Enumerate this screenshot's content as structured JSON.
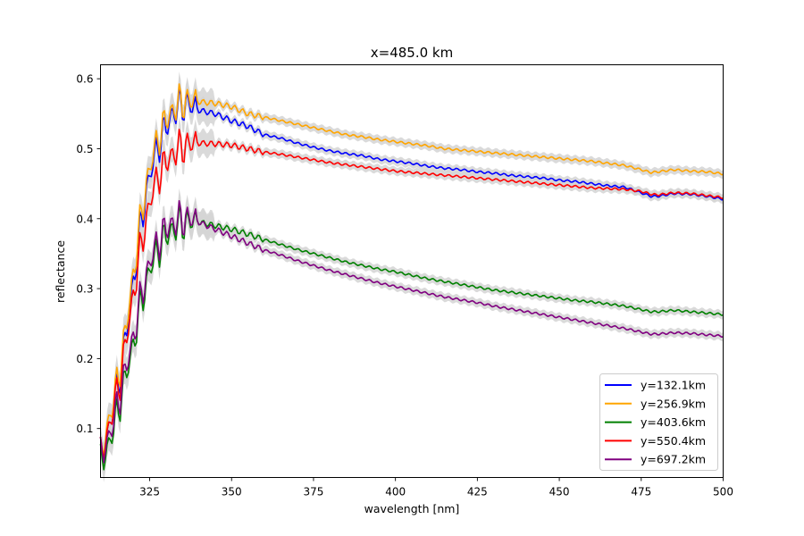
{
  "chart_data": {
    "type": "line",
    "title": "x=485.0 km",
    "xlabel": "wavelength [nm]",
    "ylabel": "reflectance",
    "xlim": [
      310,
      500
    ],
    "ylim": [
      0.03,
      0.62
    ],
    "xticks": [
      325,
      350,
      375,
      400,
      425,
      450,
      475,
      500
    ],
    "yticks": [
      0.1,
      0.2,
      0.3,
      0.4,
      0.5,
      0.6
    ],
    "grid": false,
    "legend_position": "lower-right",
    "uncertainty_band_color": "#d3d3d3",
    "series": [
      {
        "name": "y=132.1km",
        "color": "#0000ff",
        "points": [
          [
            310,
            0.06
          ],
          [
            312,
            0.09
          ],
          [
            314,
            0.13
          ],
          [
            316,
            0.18
          ],
          [
            318,
            0.24
          ],
          [
            320,
            0.31
          ],
          [
            322,
            0.38
          ],
          [
            324,
            0.44
          ],
          [
            326,
            0.48
          ],
          [
            328,
            0.51
          ],
          [
            330,
            0.53
          ],
          [
            332,
            0.55
          ],
          [
            334,
            0.56
          ],
          [
            336,
            0.565
          ],
          [
            338,
            0.56
          ],
          [
            340,
            0.555
          ],
          [
            345,
            0.55
          ],
          [
            350,
            0.54
          ],
          [
            355,
            0.532
          ],
          [
            360,
            0.52
          ],
          [
            365,
            0.515
          ],
          [
            370,
            0.508
          ],
          [
            375,
            0.502
          ],
          [
            380,
            0.497
          ],
          [
            385,
            0.493
          ],
          [
            390,
            0.49
          ],
          [
            395,
            0.485
          ],
          [
            400,
            0.482
          ],
          [
            405,
            0.479
          ],
          [
            410,
            0.475
          ],
          [
            415,
            0.472
          ],
          [
            420,
            0.47
          ],
          [
            425,
            0.467
          ],
          [
            430,
            0.465
          ],
          [
            435,
            0.462
          ],
          [
            440,
            0.46
          ],
          [
            445,
            0.458
          ],
          [
            450,
            0.455
          ],
          [
            455,
            0.453
          ],
          [
            460,
            0.45
          ],
          [
            465,
            0.447
          ],
          [
            470,
            0.445
          ],
          [
            475,
            0.437
          ],
          [
            478,
            0.432
          ],
          [
            480,
            0.432
          ],
          [
            485,
            0.436
          ],
          [
            490,
            0.435
          ],
          [
            495,
            0.432
          ],
          [
            500,
            0.428
          ]
        ]
      },
      {
        "name": "y=256.9km",
        "color": "#ffa500",
        "points": [
          [
            310,
            0.06
          ],
          [
            312,
            0.1
          ],
          [
            314,
            0.14
          ],
          [
            316,
            0.19
          ],
          [
            318,
            0.25
          ],
          [
            320,
            0.32
          ],
          [
            322,
            0.39
          ],
          [
            324,
            0.45
          ],
          [
            326,
            0.49
          ],
          [
            328,
            0.52
          ],
          [
            330,
            0.54
          ],
          [
            332,
            0.555
          ],
          [
            334,
            0.565
          ],
          [
            336,
            0.568
          ],
          [
            338,
            0.568
          ],
          [
            340,
            0.567
          ],
          [
            345,
            0.565
          ],
          [
            350,
            0.56
          ],
          [
            355,
            0.55
          ],
          [
            360,
            0.545
          ],
          [
            365,
            0.54
          ],
          [
            370,
            0.535
          ],
          [
            375,
            0.53
          ],
          [
            380,
            0.525
          ],
          [
            385,
            0.52
          ],
          [
            390,
            0.517
          ],
          [
            395,
            0.513
          ],
          [
            400,
            0.51
          ],
          [
            405,
            0.507
          ],
          [
            410,
            0.504
          ],
          [
            415,
            0.5
          ],
          [
            420,
            0.498
          ],
          [
            425,
            0.496
          ],
          [
            430,
            0.494
          ],
          [
            435,
            0.492
          ],
          [
            440,
            0.49
          ],
          [
            445,
            0.488
          ],
          [
            450,
            0.486
          ],
          [
            455,
            0.484
          ],
          [
            460,
            0.482
          ],
          [
            465,
            0.479
          ],
          [
            470,
            0.476
          ],
          [
            475,
            0.47
          ],
          [
            478,
            0.466
          ],
          [
            480,
            0.467
          ],
          [
            485,
            0.47
          ],
          [
            490,
            0.468
          ],
          [
            495,
            0.467
          ],
          [
            500,
            0.464
          ]
        ]
      },
      {
        "name": "y=403.6km",
        "color": "#008000",
        "points": [
          [
            310,
            0.05
          ],
          [
            312,
            0.07
          ],
          [
            314,
            0.1
          ],
          [
            316,
            0.14
          ],
          [
            318,
            0.18
          ],
          [
            320,
            0.22
          ],
          [
            322,
            0.27
          ],
          [
            324,
            0.31
          ],
          [
            326,
            0.34
          ],
          [
            328,
            0.36
          ],
          [
            330,
            0.375
          ],
          [
            332,
            0.385
          ],
          [
            334,
            0.392
          ],
          [
            336,
            0.395
          ],
          [
            338,
            0.396
          ],
          [
            340,
            0.395
          ],
          [
            345,
            0.39
          ],
          [
            350,
            0.385
          ],
          [
            355,
            0.378
          ],
          [
            360,
            0.37
          ],
          [
            365,
            0.363
          ],
          [
            370,
            0.356
          ],
          [
            375,
            0.35
          ],
          [
            380,
            0.344
          ],
          [
            385,
            0.338
          ],
          [
            390,
            0.333
          ],
          [
            395,
            0.328
          ],
          [
            400,
            0.324
          ],
          [
            405,
            0.319
          ],
          [
            410,
            0.314
          ],
          [
            415,
            0.31
          ],
          [
            420,
            0.306
          ],
          [
            425,
            0.302
          ],
          [
            430,
            0.298
          ],
          [
            435,
            0.295
          ],
          [
            440,
            0.292
          ],
          [
            445,
            0.289
          ],
          [
            450,
            0.286
          ],
          [
            455,
            0.283
          ],
          [
            460,
            0.281
          ],
          [
            465,
            0.278
          ],
          [
            470,
            0.275
          ],
          [
            475,
            0.27
          ],
          [
            478,
            0.267
          ],
          [
            480,
            0.267
          ],
          [
            485,
            0.269
          ],
          [
            490,
            0.267
          ],
          [
            495,
            0.265
          ],
          [
            500,
            0.263
          ]
        ]
      },
      {
        "name": "y=550.4km",
        "color": "#ff0000",
        "points": [
          [
            310,
            0.06
          ],
          [
            312,
            0.09
          ],
          [
            314,
            0.13
          ],
          [
            316,
            0.17
          ],
          [
            318,
            0.23
          ],
          [
            320,
            0.29
          ],
          [
            322,
            0.35
          ],
          [
            324,
            0.4
          ],
          [
            326,
            0.44
          ],
          [
            328,
            0.465
          ],
          [
            330,
            0.48
          ],
          [
            332,
            0.492
          ],
          [
            334,
            0.5
          ],
          [
            336,
            0.505
          ],
          [
            338,
            0.507
          ],
          [
            340,
            0.508
          ],
          [
            345,
            0.507
          ],
          [
            350,
            0.505
          ],
          [
            355,
            0.5
          ],
          [
            360,
            0.495
          ],
          [
            365,
            0.492
          ],
          [
            370,
            0.488
          ],
          [
            375,
            0.484
          ],
          [
            380,
            0.48
          ],
          [
            385,
            0.477
          ],
          [
            390,
            0.474
          ],
          [
            395,
            0.471
          ],
          [
            400,
            0.468
          ],
          [
            405,
            0.466
          ],
          [
            410,
            0.464
          ],
          [
            415,
            0.462
          ],
          [
            420,
            0.46
          ],
          [
            425,
            0.458
          ],
          [
            430,
            0.456
          ],
          [
            435,
            0.454
          ],
          [
            440,
            0.452
          ],
          [
            445,
            0.45
          ],
          [
            450,
            0.448
          ],
          [
            455,
            0.446
          ],
          [
            460,
            0.444
          ],
          [
            465,
            0.443
          ],
          [
            470,
            0.442
          ],
          [
            475,
            0.439
          ],
          [
            478,
            0.435
          ],
          [
            480,
            0.434
          ],
          [
            485,
            0.437
          ],
          [
            490,
            0.436
          ],
          [
            495,
            0.433
          ],
          [
            500,
            0.43
          ]
        ]
      },
      {
        "name": "y=697.2km",
        "color": "#800080",
        "points": [
          [
            310,
            0.06
          ],
          [
            312,
            0.08
          ],
          [
            314,
            0.11
          ],
          [
            316,
            0.15
          ],
          [
            318,
            0.19
          ],
          [
            320,
            0.23
          ],
          [
            322,
            0.28
          ],
          [
            324,
            0.32
          ],
          [
            326,
            0.35
          ],
          [
            328,
            0.37
          ],
          [
            330,
            0.385
          ],
          [
            332,
            0.393
          ],
          [
            334,
            0.398
          ],
          [
            336,
            0.4
          ],
          [
            338,
            0.399
          ],
          [
            340,
            0.395
          ],
          [
            345,
            0.385
          ],
          [
            350,
            0.375
          ],
          [
            355,
            0.365
          ],
          [
            360,
            0.355
          ],
          [
            365,
            0.348
          ],
          [
            370,
            0.34
          ],
          [
            375,
            0.333
          ],
          [
            380,
            0.326
          ],
          [
            385,
            0.32
          ],
          [
            390,
            0.314
          ],
          [
            395,
            0.308
          ],
          [
            400,
            0.303
          ],
          [
            405,
            0.298
          ],
          [
            410,
            0.293
          ],
          [
            415,
            0.288
          ],
          [
            420,
            0.284
          ],
          [
            425,
            0.28
          ],
          [
            430,
            0.275
          ],
          [
            435,
            0.271
          ],
          [
            440,
            0.267
          ],
          [
            445,
            0.263
          ],
          [
            450,
            0.259
          ],
          [
            455,
            0.255
          ],
          [
            460,
            0.251
          ],
          [
            465,
            0.247
          ],
          [
            470,
            0.243
          ],
          [
            475,
            0.238
          ],
          [
            478,
            0.235
          ],
          [
            480,
            0.235
          ],
          [
            485,
            0.237
          ],
          [
            490,
            0.236
          ],
          [
            495,
            0.234
          ],
          [
            500,
            0.232
          ]
        ]
      }
    ]
  }
}
